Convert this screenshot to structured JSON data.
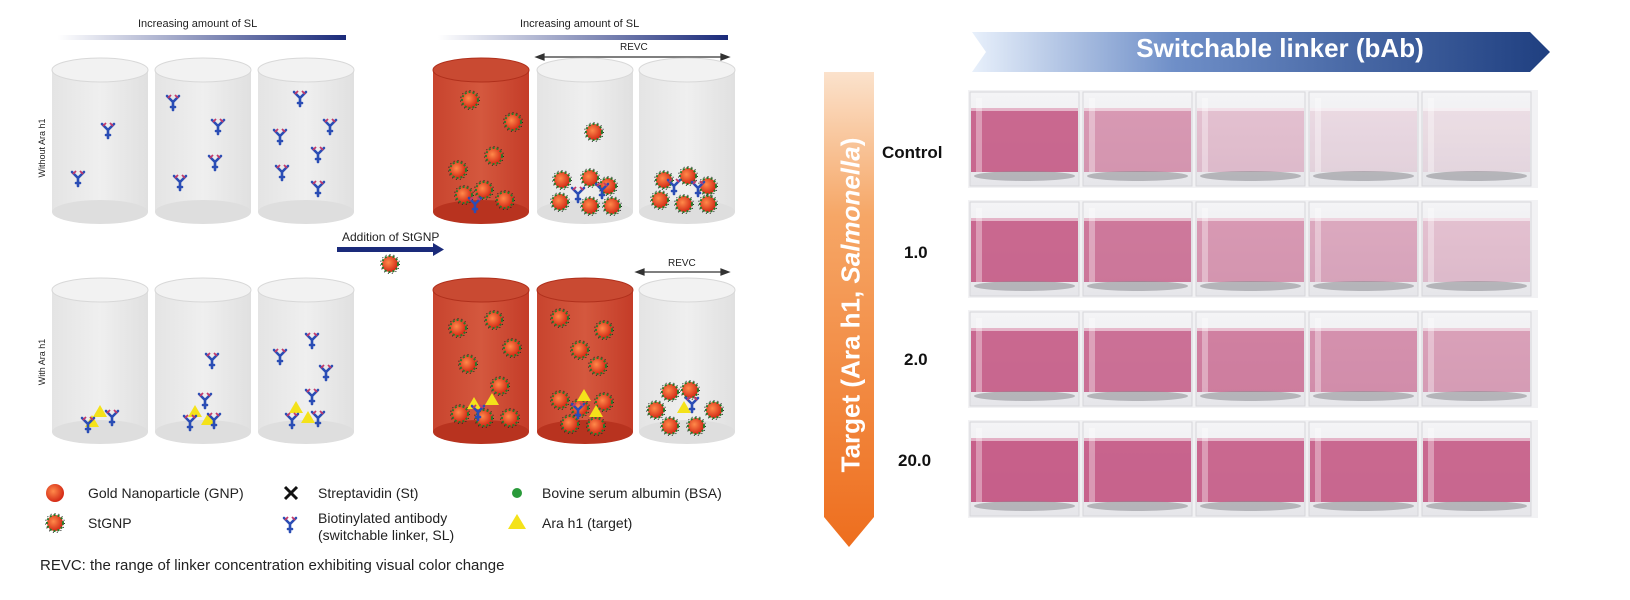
{
  "schematic": {
    "top_heading_left": "Increasing amount of SL",
    "top_heading_right": "Increasing amount of SL",
    "revc_top": "REVC",
    "revc_bottom": "REVC",
    "row_label_top": "Without Ara h1",
    "row_label_bottom": "With Ara h1",
    "addition_label": "Addition of StGNP",
    "legend": {
      "gnp": "Gold Nanoparticle (GNP)",
      "stgnp": "StGNP",
      "streptavidin": "Streptavidin (St)",
      "antibody_line1": "Biotinylated antibody",
      "antibody_line2": "(switchable linker, SL)",
      "bsa": "Bovine serum albumin (BSA)",
      "target": "Ara h1 (target)"
    },
    "footnote": "REVC: the range of linker concentration exhibiting visual color change"
  },
  "photo_panel": {
    "header": "Switchable linker (bAb)",
    "side_label_prefix": "Target (Ara h1, ",
    "side_label_italic": "Salmonella",
    "side_label_suffix": ")",
    "rows": [
      {
        "label": "Control",
        "tints": [
          0.85,
          0.55,
          0.3,
          0.15,
          0.12
        ]
      },
      {
        "label": "1.0",
        "tints": [
          0.85,
          0.75,
          0.55,
          0.45,
          0.3
        ]
      },
      {
        "label": "2.0",
        "tints": [
          0.85,
          0.8,
          0.7,
          0.6,
          0.5
        ]
      },
      {
        "label": "20.0",
        "tints": [
          0.9,
          0.88,
          0.85,
          0.85,
          0.85
        ]
      }
    ],
    "colors": {
      "pink": "#c2507e",
      "header_blue": "#2a4a8c",
      "side_orange": "#ee7324"
    }
  }
}
